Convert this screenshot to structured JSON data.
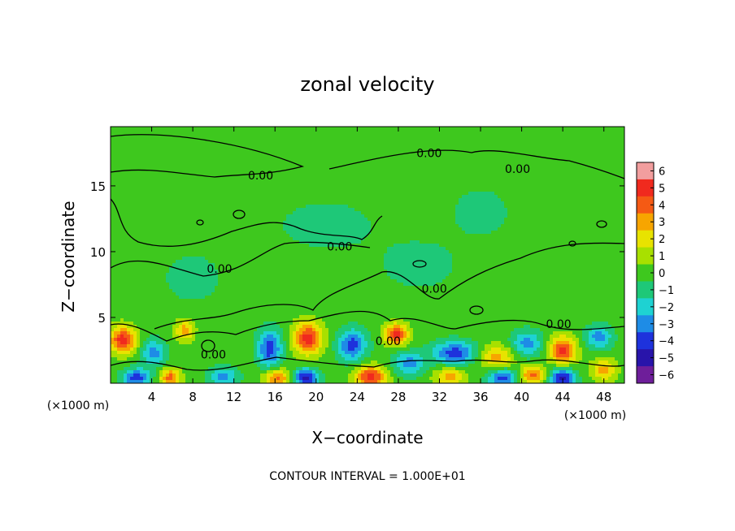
{
  "chart_data": {
    "type": "heatmap",
    "title": "zonal velocity",
    "xlabel": "X−coordinate",
    "ylabel": "Z−coordinate",
    "x_unit_left": "(×1000 m)",
    "x_unit_right": "(×1000 m)",
    "footer": "CONTOUR INTERVAL = 1.000E+01",
    "xlim": [
      0,
      50
    ],
    "ylim": [
      0,
      19.5
    ],
    "x_ticks": [
      4,
      8,
      12,
      16,
      20,
      24,
      28,
      32,
      36,
      40,
      44,
      48
    ],
    "x_tick_labels": [
      "4",
      "8",
      "12",
      "16",
      "20",
      "24",
      "28",
      "32",
      "36",
      "40",
      "44",
      "48"
    ],
    "y_ticks": [
      5,
      10,
      15
    ],
    "y_tick_labels": [
      "5",
      "10",
      "15"
    ],
    "colorbar": {
      "levels": [
        6,
        5,
        4,
        3,
        2,
        1,
        0,
        -1,
        -2,
        -3,
        -4,
        -5,
        -6
      ],
      "labels": [
        "6",
        "5",
        "4",
        "3",
        "2",
        "1",
        "0",
        "−1",
        "−2",
        "−3",
        "−4",
        "−5",
        "−6"
      ],
      "colors": [
        "#f29e9e",
        "#f02a1e",
        "#f55a14",
        "#f7a500",
        "#e8e300",
        "#a8e000",
        "#3ec81e",
        "#1ec878",
        "#1ed2d2",
        "#1e8ce6",
        "#1e32dc",
        "#2814aa",
        "#6e1e9a"
      ]
    },
    "contour_label": "0.00",
    "contour_label_positions": [
      {
        "x": 31.0,
        "z": 17.5
      },
      {
        "x": 39.6,
        "z": 16.3
      },
      {
        "x": 14.6,
        "z": 15.8
      },
      {
        "x": 22.3,
        "z": 10.4
      },
      {
        "x": 10.6,
        "z": 8.7
      },
      {
        "x": 31.5,
        "z": 7.2
      },
      {
        "x": 43.6,
        "z": 4.5
      },
      {
        "x": 27.0,
        "z": 3.2
      },
      {
        "x": 10.0,
        "z": 2.2
      }
    ],
    "anomalies": [
      {
        "x": 1.2,
        "z": 3.3,
        "v": 5,
        "sx": 1.3,
        "sz": 1.0
      },
      {
        "x": 5.8,
        "z": 0.4,
        "v": 4,
        "sx": 1.0,
        "sz": 0.7
      },
      {
        "x": 4.2,
        "z": 2.3,
        "v": -3,
        "sx": 1.2,
        "sz": 1.0
      },
      {
        "x": 7.2,
        "z": 4.0,
        "v": 3,
        "sx": 0.9,
        "sz": 0.8
      },
      {
        "x": 2.5,
        "z": 0.4,
        "v": -4,
        "sx": 1.4,
        "sz": 0.7
      },
      {
        "x": 11.0,
        "z": 0.5,
        "v": -3,
        "sx": 1.4,
        "sz": 0.7
      },
      {
        "x": 15.5,
        "z": 2.6,
        "v": -4,
        "sx": 1.2,
        "sz": 1.5
      },
      {
        "x": 16.2,
        "z": 0.4,
        "v": 4,
        "sx": 1.3,
        "sz": 0.7
      },
      {
        "x": 19.2,
        "z": 3.4,
        "v": 5,
        "sx": 1.4,
        "sz": 1.2
      },
      {
        "x": 19.0,
        "z": 0.4,
        "v": -5,
        "sx": 1.2,
        "sz": 0.7
      },
      {
        "x": 23.5,
        "z": 2.9,
        "v": -4,
        "sx": 1.4,
        "sz": 1.2
      },
      {
        "x": 25.3,
        "z": 0.5,
        "v": 5,
        "sx": 1.5,
        "sz": 0.8
      },
      {
        "x": 27.8,
        "z": 3.7,
        "v": 5,
        "sx": 1.1,
        "sz": 0.8
      },
      {
        "x": 29.0,
        "z": 1.5,
        "v": -3,
        "sx": 1.5,
        "sz": 0.9
      },
      {
        "x": 33.5,
        "z": 2.3,
        "v": -4,
        "sx": 2.2,
        "sz": 0.9
      },
      {
        "x": 33.0,
        "z": 0.5,
        "v": 3,
        "sx": 1.5,
        "sz": 0.7
      },
      {
        "x": 37.5,
        "z": 2.0,
        "v": 3,
        "sx": 1.8,
        "sz": 0.9
      },
      {
        "x": 38.2,
        "z": 0.4,
        "v": -4,
        "sx": 1.5,
        "sz": 0.7
      },
      {
        "x": 41.0,
        "z": 0.6,
        "v": 4,
        "sx": 1.2,
        "sz": 0.7
      },
      {
        "x": 40.5,
        "z": 3.0,
        "v": -3,
        "sx": 1.5,
        "sz": 1.0
      },
      {
        "x": 44.0,
        "z": 2.5,
        "v": 5,
        "sx": 1.3,
        "sz": 1.0
      },
      {
        "x": 44.0,
        "z": 0.4,
        "v": -5,
        "sx": 1.2,
        "sz": 0.7
      },
      {
        "x": 47.5,
        "z": 3.5,
        "v": -3,
        "sx": 1.3,
        "sz": 0.9
      },
      {
        "x": 48.0,
        "z": 1.0,
        "v": 3,
        "sx": 1.2,
        "sz": 0.8
      },
      {
        "x": 21.0,
        "z": 12.0,
        "v": -1,
        "sx": 5.0,
        "sz": 2.0
      },
      {
        "x": 30.0,
        "z": 9.0,
        "v": -1,
        "sx": 4.0,
        "sz": 2.0
      },
      {
        "x": 8.0,
        "z": 8.0,
        "v": -1,
        "sx": 3.0,
        "sz": 2.0
      },
      {
        "x": 36.0,
        "z": 13.0,
        "v": -1,
        "sx": 3.0,
        "sz": 2.0
      }
    ]
  }
}
